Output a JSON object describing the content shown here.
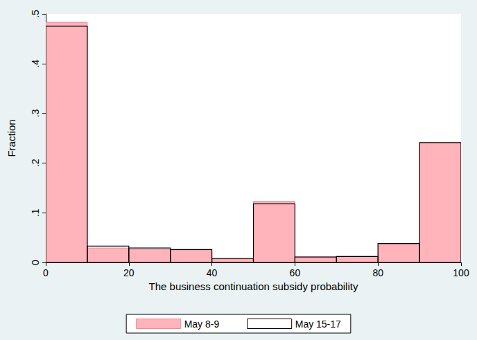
{
  "chart_data": {
    "type": "histogram",
    "xlabel": "The business continuation subsidy probability",
    "ylabel": "Fraction",
    "bins": [
      0,
      10,
      20,
      30,
      40,
      50,
      60,
      70,
      80,
      90,
      100
    ],
    "series": [
      {
        "name": "May 8-9",
        "color": "#ffb3bb",
        "values": [
          0.483,
          0.029,
          0.026,
          0.025,
          0.007,
          0.123,
          0.011,
          0.012,
          0.037,
          0.24
        ]
      },
      {
        "name": "May 15-17",
        "color": "#000000",
        "values": [
          0.475,
          0.033,
          0.029,
          0.026,
          0.008,
          0.118,
          0.011,
          0.012,
          0.038,
          0.241
        ]
      }
    ],
    "xlim": [
      0,
      100
    ],
    "xticks": [
      0,
      20,
      40,
      60,
      80,
      100
    ],
    "ylim": [
      0,
      0.5
    ],
    "yticks": [
      0,
      {
        "value": 0.1,
        "label": ".1"
      },
      {
        "value": 0.2,
        "label": ".2"
      },
      {
        "value": 0.3,
        "label": ".3"
      },
      {
        "value": 0.4,
        "label": ".4"
      },
      {
        "value": 0.5,
        "label": ".5"
      }
    ],
    "grid": false,
    "legend": "bottom"
  }
}
